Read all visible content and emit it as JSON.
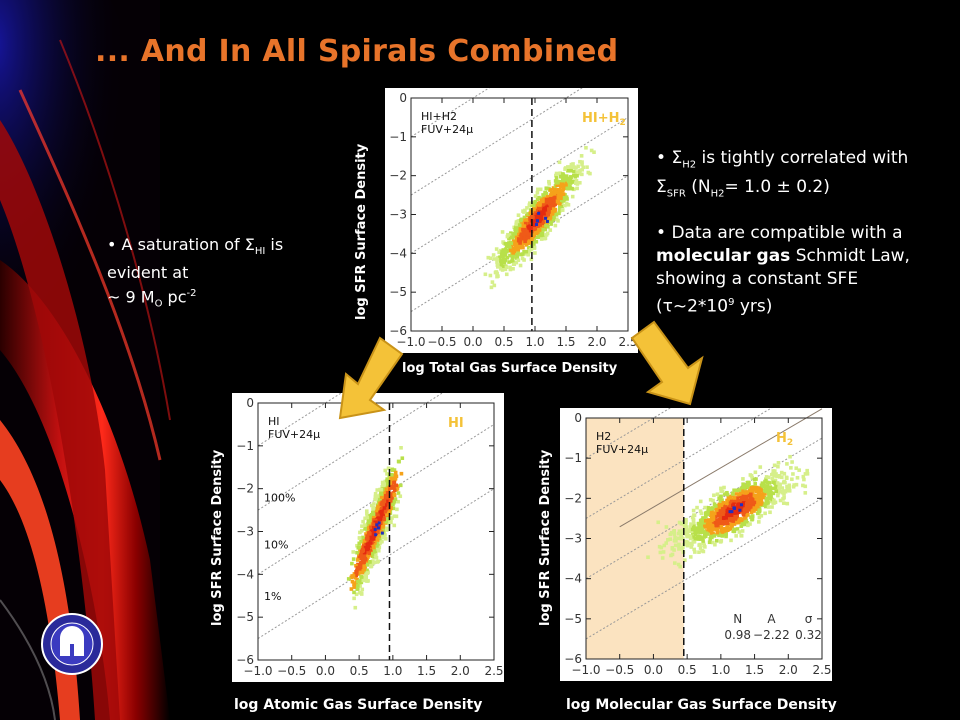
{
  "slide": {
    "title": "... And In All Spirals Combined",
    "colors": {
      "title": "#e8742a",
      "arrow": "#f4c238",
      "background": "#000000"
    }
  },
  "bullets": {
    "left": {
      "lines": [
        "A saturation of Σ",
        "HI",
        "is evident at",
        "~ 9 M",
        "O",
        "pc",
        "-2"
      ]
    },
    "right_1": {
      "lines": [
        "Σ",
        "H2",
        "is tightly correlated with Σ",
        "SFR",
        "(N",
        "H2",
        "= 1.0 ± 0.2)"
      ]
    },
    "right_2": {
      "lines": [
        "Data are compatible with a",
        "molecular gas",
        "Schmidt Law, showing a constant SFE (τ~2*10",
        "9",
        "yrs)"
      ]
    }
  },
  "panels": {
    "total": {
      "inner_label": "HI+H2",
      "tag": "HI+H",
      "tag_sub": "2",
      "inner_label_sub": "FUV+24μ",
      "ylabel": "log SFR Surface Density",
      "xlabel": "log Total Gas Surface Density"
    },
    "atomic": {
      "inner_label": "HI",
      "tag": "HI",
      "inner_label_sub": "FUV+24μ",
      "ylabel": "log SFR Surface Density",
      "xlabel": "log Atomic Gas Surface Density",
      "efficiency_labels": [
        "100%",
        "10%",
        "1%"
      ]
    },
    "molecular": {
      "inner_label": "H2",
      "tag": "H",
      "tag_sub": "2",
      "inner_label_sub": "FUV+24μ",
      "ylabel": "log SFR Surface Density",
      "xlabel": "log Molecular Gas Surface Density",
      "fit": {
        "headers": [
          "N",
          "A",
          "σ"
        ],
        "values": [
          "0.98",
          "−2.22",
          "0.32"
        ]
      }
    }
  },
  "chart_data": [
    {
      "type": "scatter",
      "name_tag": "HI+H2",
      "xlabel": "log Total Gas Surface Density",
      "ylabel": "log SFR Surface Density",
      "xlim": [
        -1.0,
        2.5
      ],
      "ylim": [
        -6,
        0
      ],
      "xticks": [
        "−1.0",
        "−0.5",
        "0.0",
        "0.5",
        "1.0",
        "1.5",
        "2.0",
        "2.5"
      ],
      "yticks": [
        "0",
        "−1",
        "−2",
        "−3",
        "−4",
        "−5",
        "−6"
      ],
      "vline_x": 0.95,
      "density_center": [
        1.05,
        -3.1
      ],
      "density_trend_slope": 1.8
    },
    {
      "type": "scatter",
      "name_tag": "HI",
      "xlabel": "log Atomic Gas Surface Density",
      "ylabel": "log SFR Surface Density",
      "xlim": [
        -1.0,
        2.5
      ],
      "ylim": [
        -6,
        0
      ],
      "xticks": [
        "−1.0",
        "−0.5",
        "0.0",
        "0.5",
        "1.0",
        "1.5",
        "2.0",
        "2.5"
      ],
      "yticks": [
        "0",
        "−1",
        "−2",
        "−3",
        "−4",
        "−5",
        "−6"
      ],
      "vline_x": 0.95,
      "density_center": [
        0.75,
        -2.9
      ],
      "density_trend_slope": 3.5
    },
    {
      "type": "scatter",
      "name_tag": "H2",
      "xlabel": "log Molecular Gas Surface Density",
      "ylabel": "log SFR Surface Density",
      "xlim": [
        -1.0,
        2.5
      ],
      "ylim": [
        -6,
        0
      ],
      "xticks": [
        "−1.0",
        "−0.5",
        "0.0",
        "0.5",
        "1.0",
        "1.5",
        "2.0",
        "2.5"
      ],
      "yticks": [
        "0",
        "−1",
        "−2",
        "−3",
        "−4",
        "−5",
        "−6"
      ],
      "vline_x": 0.45,
      "shaded_xrange": [
        -1.0,
        0.45
      ],
      "fit_line": {
        "slope": 0.98,
        "intercept": -2.22
      },
      "density_center": [
        1.2,
        -2.3
      ],
      "density_trend_slope": 0.9
    }
  ]
}
